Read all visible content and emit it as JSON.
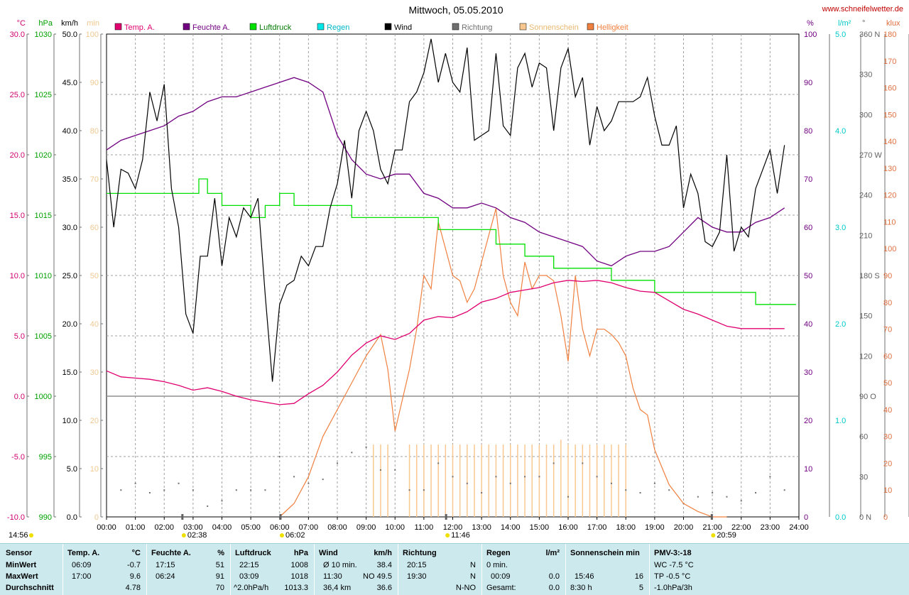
{
  "header": {
    "title": "Mittwoch, 05.05.2010",
    "site": "www.schneifelwetter.de"
  },
  "axes": {
    "left": [
      {
        "unit": "°C",
        "color": "#d0006f",
        "ticks": [
          "30.0",
          "25.0",
          "20.0",
          "15.0",
          "10.0",
          "5.0",
          "0.0",
          "-5.0",
          "-10.0"
        ]
      },
      {
        "unit": "hPa",
        "color": "#00a000",
        "ticks": [
          "1030",
          "1025",
          "1020",
          "1015",
          "1010",
          "1005",
          "1000",
          "995",
          "990"
        ]
      },
      {
        "unit": "km/h",
        "color": "#000000",
        "ticks": [
          "50.0",
          "45.0",
          "40.0",
          "35.0",
          "30.0",
          "25.0",
          "20.0",
          "15.0",
          "10.0",
          "5.0",
          "0.0"
        ]
      },
      {
        "unit": "min",
        "color": "#f0c890",
        "ticks": [
          "100",
          "90",
          "80",
          "70",
          "60",
          "50",
          "40",
          "30",
          "20",
          "10",
          "0"
        ]
      }
    ],
    "right": [
      {
        "unit": "%",
        "color": "#700080",
        "ticks": [
          "100",
          "90",
          "80",
          "70",
          "60",
          "50",
          "40",
          "30",
          "20",
          "10",
          "0"
        ]
      },
      {
        "unit": "l/m²",
        "color": "#00c8c8",
        "ticks": [
          "5.0",
          "4.0",
          "3.0",
          "2.0",
          "1.0",
          "0.0"
        ]
      },
      {
        "unit": "°",
        "color": "#606060",
        "ticks": [
          "360 N",
          "330",
          "300",
          "270 W",
          "240",
          "210",
          "180 S",
          "150",
          "120",
          "90 O",
          "60",
          "30",
          "0 N"
        ]
      },
      {
        "unit": "klux",
        "color": "#e07040",
        "ticks": [
          "180",
          "170",
          "160",
          "150",
          "140",
          "130",
          "120",
          "110",
          "100",
          "90",
          "80",
          "70",
          "60",
          "50",
          "40",
          "30",
          "20",
          "10",
          "0"
        ]
      }
    ],
    "x_ticks": [
      "00:00",
      "01:00",
      "02:00",
      "03:00",
      "04:00",
      "05:00",
      "06:00",
      "07:00",
      "08:00",
      "09:00",
      "10:00",
      "11:00",
      "12:00",
      "13:00",
      "14:00",
      "15:00",
      "16:00",
      "17:00",
      "18:00",
      "19:00",
      "20:00",
      "21:00",
      "22:00",
      "23:00",
      "24:00"
    ]
  },
  "legend": [
    {
      "label": "Temp. A.",
      "color": "#e0006f"
    },
    {
      "label": "Feuchte A.",
      "color": "#700080"
    },
    {
      "label": "Luftdruck",
      "color": "#00e000"
    },
    {
      "label": "Regen",
      "color": "#00e8e8"
    },
    {
      "label": "Wind",
      "color": "#000000"
    },
    {
      "label": "Richtung",
      "color": "#707070"
    },
    {
      "label": "Sonnenschein",
      "color": "#f8c890"
    },
    {
      "label": "Helligkeit",
      "color": "#f08040"
    }
  ],
  "annotations": {
    "left_time": "14:56",
    "sun_events": [
      "02:38",
      "06:02",
      "11:46",
      "20:59"
    ]
  },
  "chart_data": {
    "type": "line",
    "title": "Mittwoch, 05.05.2010",
    "x_unit": "hours",
    "xlim": [
      0,
      24
    ],
    "series": [
      {
        "name": "Temp. A.",
        "unit": "°C",
        "ylim": [
          -10,
          30
        ],
        "x": [
          0,
          0.5,
          1,
          1.5,
          2,
          2.5,
          3,
          3.5,
          4,
          4.5,
          5,
          5.5,
          6,
          6.5,
          7,
          7.5,
          8,
          8.5,
          9,
          9.5,
          10,
          10.5,
          11,
          11.5,
          12,
          12.5,
          13,
          13.5,
          14,
          14.5,
          15,
          15.5,
          16,
          16.5,
          17,
          17.5,
          18,
          18.5,
          19,
          19.5,
          20,
          20.5,
          21,
          21.5,
          22,
          22.5,
          23,
          23.5
        ],
        "y": [
          2.1,
          1.6,
          1.5,
          1.4,
          1.2,
          0.9,
          0.5,
          0.7,
          0.4,
          0,
          -0.3,
          -0.5,
          -0.7,
          -0.6,
          0.2,
          0.9,
          2,
          3.4,
          4.4,
          5,
          4.7,
          5.2,
          6.3,
          6.6,
          6.5,
          7,
          7.8,
          8.1,
          8.6,
          8.8,
          9,
          9.4,
          9.6,
          9.5,
          9.6,
          9.4,
          9,
          8.7,
          8.6,
          7.9,
          7.2,
          6.8,
          6.3,
          5.8,
          5.6,
          5.6,
          5.6,
          5.6
        ]
      },
      {
        "name": "Feuchte A.",
        "unit": "%",
        "ylim": [
          0,
          100
        ],
        "x": [
          0,
          0.5,
          1,
          1.5,
          2,
          2.5,
          3,
          3.5,
          4,
          4.5,
          5,
          5.5,
          6,
          6.5,
          7,
          7.5,
          8,
          8.5,
          9,
          9.5,
          10,
          10.5,
          11,
          11.5,
          12,
          12.5,
          13,
          13.5,
          14,
          14.5,
          15,
          15.5,
          16,
          16.5,
          17,
          17.5,
          18,
          18.5,
          19,
          19.5,
          20,
          20.5,
          21,
          21.5,
          22,
          22.5,
          23,
          23.5
        ],
        "y": [
          76,
          78,
          79,
          80,
          81,
          83,
          84,
          86,
          87,
          87,
          88,
          89,
          90,
          91,
          90,
          88,
          79,
          74,
          71,
          70,
          71,
          71,
          67,
          66,
          64,
          64,
          65,
          64,
          62,
          61,
          59,
          58,
          57,
          56,
          53,
          52,
          54,
          55,
          55,
          56,
          59,
          62,
          60,
          59,
          59,
          61,
          62,
          64
        ]
      },
      {
        "name": "Luftdruck",
        "unit": "hPa",
        "ylim": [
          990,
          1030
        ],
        "x": [
          0,
          1,
          2,
          3,
          3.2,
          3.5,
          4,
          4.5,
          5,
          5.5,
          6,
          6.5,
          7,
          8,
          8.5,
          9,
          10,
          11,
          11.5,
          12,
          13,
          13.5,
          14,
          14.5,
          15,
          15.5,
          16,
          17,
          17.5,
          18,
          19,
          20,
          21,
          22,
          22.5,
          23,
          23.5
        ],
        "y": [
          1016.8,
          1016.8,
          1016.8,
          1016.8,
          1018,
          1016.8,
          1015.8,
          1015.8,
          1014.8,
          1015.8,
          1016.8,
          1015.8,
          1015.8,
          1015.8,
          1014.8,
          1014.8,
          1014.8,
          1014.8,
          1013.8,
          1013.8,
          1013.8,
          1012.6,
          1012.6,
          1011.6,
          1011.6,
          1010.6,
          1010.6,
          1010.6,
          1009.6,
          1009.6,
          1008.6,
          1008.6,
          1008.6,
          1008.6,
          1007.6,
          1007.6,
          1007.6
        ]
      },
      {
        "name": "Wind",
        "unit": "km/h",
        "ylim": [
          0,
          50
        ],
        "x": [
          0,
          0.25,
          0.5,
          0.75,
          1,
          1.25,
          1.5,
          1.75,
          2,
          2.25,
          2.5,
          2.75,
          3,
          3.25,
          3.5,
          3.75,
          4,
          4.25,
          4.5,
          4.75,
          5,
          5.25,
          5.5,
          5.75,
          6,
          6.25,
          6.5,
          6.75,
          7,
          7.25,
          7.5,
          7.75,
          8,
          8.25,
          8.5,
          8.75,
          9,
          9.25,
          9.5,
          9.75,
          10,
          10.25,
          10.5,
          10.75,
          11,
          11.25,
          11.5,
          11.75,
          12,
          12.25,
          12.5,
          12.75,
          13,
          13.25,
          13.5,
          13.75,
          14,
          14.25,
          14.5,
          14.75,
          15,
          15.25,
          15.5,
          15.75,
          16,
          16.25,
          16.5,
          16.75,
          17,
          17.25,
          17.5,
          17.75,
          18,
          18.25,
          18.5,
          18.75,
          19,
          19.25,
          19.5,
          19.75,
          20,
          20.25,
          20.5,
          20.75,
          21,
          21.25,
          21.5,
          21.75,
          22,
          22.25,
          22.5,
          22.75,
          23,
          23.25,
          23.5
        ],
        "y": [
          37,
          30,
          36,
          35.6,
          34,
          37,
          44,
          41,
          44.8,
          34,
          30,
          21,
          19,
          27,
          27,
          33,
          26,
          31,
          29,
          32,
          31,
          33,
          23,
          14,
          22,
          24,
          24.5,
          27,
          26,
          28,
          28,
          32,
          34.5,
          39,
          33,
          40,
          42,
          40,
          36,
          34.5,
          38,
          38,
          43,
          44,
          46,
          49.5,
          45,
          48,
          45,
          44,
          48.6,
          39,
          39.5,
          40,
          48,
          40.5,
          39.5,
          46.5,
          48,
          44.5,
          47,
          46.5,
          40,
          46.5,
          48.5,
          43.5,
          45.5,
          38.5,
          42.5,
          40,
          41,
          43,
          43,
          43,
          43.5,
          45.5,
          41.5,
          38.5,
          38.5,
          40.5,
          32,
          35.5,
          33.5,
          28.5,
          28,
          29.5,
          37.5,
          27.5,
          30,
          29,
          34,
          36,
          38,
          33.5,
          38.5
        ]
      },
      {
        "name": "Helligkeit",
        "unit": "klux",
        "ylim": [
          0,
          180
        ],
        "x": [
          6,
          6.5,
          7,
          7.5,
          8,
          8.5,
          9,
          9.5,
          9.75,
          10,
          10.5,
          10.75,
          11,
          11.25,
          11.5,
          12,
          12.25,
          12.5,
          12.75,
          13,
          13.25,
          13.5,
          13.75,
          14,
          14.25,
          14.5,
          14.75,
          15,
          15.25,
          15.5,
          15.75,
          16,
          16.25,
          16.5,
          16.75,
          17,
          17.25,
          17.5,
          17.75,
          18,
          18.25,
          18.5,
          18.75,
          19,
          19.5,
          20,
          20.5,
          21,
          21.5
        ],
        "y": [
          0,
          5,
          15,
          30,
          40,
          50,
          60,
          68,
          55,
          32,
          55,
          70,
          90,
          85,
          110,
          90,
          88,
          80,
          85,
          95,
          105,
          115,
          90,
          80,
          75,
          95,
          85,
          90,
          90,
          88,
          75,
          58,
          90,
          70,
          60,
          70,
          70,
          68,
          65,
          60,
          48,
          40,
          38,
          25,
          12,
          5,
          2,
          0,
          0
        ]
      },
      {
        "name": "Sonnenschein",
        "unit": "min",
        "x": [
          9.25,
          9.5,
          9.75,
          10.5,
          10.75,
          11,
          11.25,
          11.5,
          11.75,
          12,
          12.25,
          12.5,
          12.75,
          13,
          13.25,
          13.5,
          13.75,
          14,
          14.25,
          14.5,
          14.75,
          15,
          15.25,
          15.5,
          15.75,
          16,
          16.25,
          16.5,
          16.75,
          17,
          17.25,
          17.5,
          17.75,
          18
        ],
        "y": [
          15,
          15,
          15,
          15,
          15,
          15,
          15,
          15,
          15,
          15,
          15,
          15,
          15,
          15,
          15,
          15,
          15,
          15,
          15,
          15,
          15,
          15,
          15,
          15,
          16,
          15,
          15,
          15,
          15,
          15,
          15,
          15,
          15,
          15
        ]
      },
      {
        "name": "Richtung",
        "unit": "°",
        "x": [
          0.5,
          1,
          1.5,
          2,
          2.5,
          3,
          3.5,
          4,
          4.5,
          5,
          5.5,
          6,
          6.5,
          7,
          7.5,
          8,
          8.5,
          9,
          9.5,
          10,
          10.5,
          11,
          11.5,
          12,
          12.5,
          13,
          13.5,
          14,
          14.5,
          15,
          15.5,
          16,
          16.5,
          17,
          17.5,
          18,
          18.5,
          19,
          19.5,
          20,
          20.5,
          21,
          21.5,
          22,
          22.5,
          23,
          23.5
        ],
        "y": [
          20,
          25,
          18,
          20,
          25,
          20,
          8,
          12,
          20,
          20,
          20,
          45,
          30,
          25,
          28,
          40,
          48,
          52,
          35,
          35,
          20,
          20,
          40,
          30,
          25,
          18,
          30,
          25,
          30,
          30,
          40,
          15,
          40,
          30,
          25,
          20,
          18,
          25,
          20,
          10,
          15,
          18,
          15,
          12,
          18,
          30,
          20
        ]
      }
    ]
  },
  "stats": {
    "row_labels": [
      "Sensor",
      "MinWert",
      "MaxWert",
      "Durchschnitt"
    ],
    "temp": {
      "title": "Temp. A.",
      "unit": "°C",
      "min_time": "06:09",
      "min": "-0.7",
      "max_time": "17:00",
      "max": "9.6",
      "avg": "4.78"
    },
    "feuchte": {
      "title": "Feuchte A.",
      "unit": "%",
      "min_time": "17:15",
      "min": "51",
      "max_time": "06:24",
      "max": "91",
      "avg": "70"
    },
    "druck": {
      "title": "Luftdruck",
      "unit": "hPa",
      "min_time": "22:15",
      "min": "1008",
      "max_time": "03:09",
      "max": "1018",
      "trend": "^2.0hPa/h",
      "avg": "1013.3"
    },
    "wind": {
      "title": "Wind",
      "unit": "km/h",
      "min_label": "Ø 10 min.",
      "min": "38.4",
      "max_time": "11:30",
      "max": "NO 49.5",
      "dist": "36,4 km",
      "avg": "36.6"
    },
    "richtung": {
      "title": "Richtung",
      "min_time": "20:15",
      "min": "N",
      "max_time": "19:30",
      "max": "N",
      "avg": "N-NO"
    },
    "regen": {
      "title": "Regen",
      "unit": "l/m²",
      "min_label": "0 min.",
      "max_time": "00:09",
      "max": "0.0",
      "total_label": "Gesamt:",
      "total": "0.0"
    },
    "sonne": {
      "title": "Sonnenschein min",
      "max_time": "15:46",
      "max": "16",
      "total_label": "8:30 h",
      "total": "5"
    },
    "pmv": {
      "title": "PMV-3:-18",
      "line1": "WC -7.5 °C",
      "line2": "TP -0.5 °C",
      "line3": "-1.0hPa/3h"
    }
  }
}
